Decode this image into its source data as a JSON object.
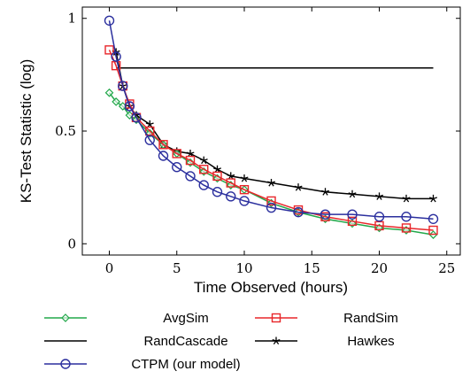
{
  "chart_data": {
    "type": "line",
    "xlabel": "Time Observed (hours)",
    "ylabel": "KS-Test Statistic (log)",
    "xlim": [
      -2,
      26
    ],
    "ylim": [
      -0.05,
      1.05
    ],
    "x_ticks": [
      0,
      5,
      10,
      15,
      20,
      25
    ],
    "x_tick_labels": [
      "0",
      "5",
      "10",
      "15",
      "20",
      "25"
    ],
    "y_ticks": [
      0,
      0.5,
      1
    ],
    "y_tick_labels": [
      "0",
      "0.5",
      "1"
    ],
    "grid": false,
    "legend_position": "bottom",
    "series": [
      {
        "name": "AvgSim",
        "color": "#22a84a",
        "marker": "diamond",
        "x": [
          0,
          0.5,
          1,
          1.5,
          2,
          3,
          4,
          5,
          6,
          7,
          8,
          9,
          10,
          12,
          14,
          16,
          18,
          20,
          22,
          24
        ],
        "y": [
          0.67,
          0.63,
          0.61,
          0.57,
          0.55,
          0.49,
          0.44,
          0.4,
          0.36,
          0.32,
          0.29,
          0.26,
          0.24,
          0.18,
          0.14,
          0.11,
          0.09,
          0.07,
          0.06,
          0.04
        ]
      },
      {
        "name": "RandSim",
        "color": "#e8262a",
        "marker": "square",
        "x": [
          0,
          0.5,
          1,
          1.5,
          2,
          3,
          4,
          5,
          6,
          7,
          8,
          9,
          10,
          12,
          14,
          16,
          18,
          20,
          22,
          24
        ],
        "y": [
          0.86,
          0.79,
          0.7,
          0.62,
          0.56,
          0.5,
          0.44,
          0.4,
          0.37,
          0.33,
          0.3,
          0.27,
          0.24,
          0.19,
          0.15,
          0.12,
          0.1,
          0.08,
          0.07,
          0.06
        ]
      },
      {
        "name": "RandCascade",
        "color": "#000000",
        "marker": "none",
        "x": [
          0.5,
          24
        ],
        "y": [
          0.78,
          0.78
        ]
      },
      {
        "name": "Hawkes",
        "color": "#000000",
        "marker": "star",
        "x": [
          0.5,
          1,
          1.5,
          2,
          3,
          4,
          5,
          6,
          7,
          8,
          9,
          10,
          12,
          14,
          16,
          18,
          20,
          22,
          24
        ],
        "y": [
          0.85,
          0.7,
          0.61,
          0.57,
          0.53,
          0.44,
          0.41,
          0.4,
          0.37,
          0.33,
          0.3,
          0.29,
          0.27,
          0.25,
          0.23,
          0.22,
          0.21,
          0.2,
          0.2
        ]
      },
      {
        "name": "CTPM (our model)",
        "color": "#2b2f9e",
        "marker": "circle",
        "x": [
          0,
          0.5,
          1,
          1.5,
          2,
          3,
          4,
          5,
          6,
          7,
          8,
          9,
          10,
          12,
          14,
          16,
          18,
          20,
          22,
          24
        ],
        "y": [
          0.99,
          0.83,
          0.7,
          0.61,
          0.56,
          0.46,
          0.39,
          0.34,
          0.3,
          0.26,
          0.23,
          0.21,
          0.19,
          0.16,
          0.14,
          0.13,
          0.13,
          0.12,
          0.12,
          0.11
        ]
      }
    ]
  }
}
